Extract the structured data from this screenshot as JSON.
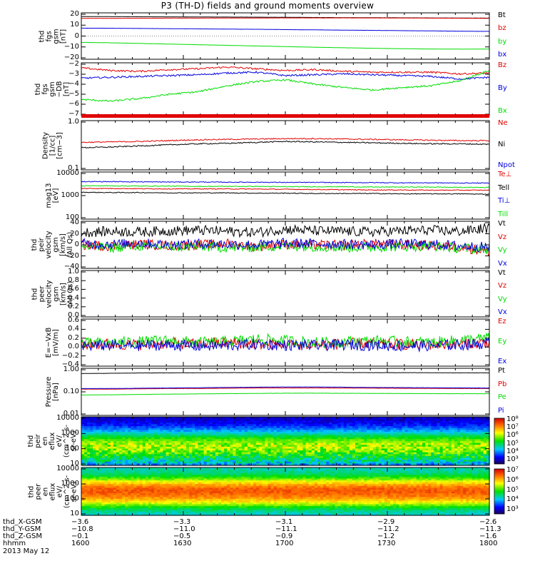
{
  "title": "P3 (TH-D) fields and ground moments overview",
  "date": "2013 May 12",
  "colors": {
    "black": "#000000",
    "red": "#e00000",
    "green": "#00dd00",
    "blue": "#0000dd"
  },
  "chart_data": [
    {
      "id": "fgs",
      "type": "line",
      "ylabel": [
        "thd",
        "fgs",
        "gsm",
        "[nT]"
      ],
      "yticks": [
        "20",
        "10",
        "0",
        "−10",
        "−20"
      ],
      "ylim": [
        -22,
        22
      ],
      "series": [
        {
          "name": "Bt",
          "color": "black",
          "values": [
            18.5,
            18.4,
            18.3,
            18.2,
            18.1,
            18.0,
            17.9,
            17.8,
            17.6,
            17.5,
            17.4,
            17.3,
            17.2,
            17.1,
            17.0
          ]
        },
        {
          "name": "bz",
          "color": "red",
          "values": [
            16.8,
            16.8,
            16.9,
            17.0,
            17.0,
            17.1,
            17.1,
            17.2,
            17.2,
            17.2,
            17.2,
            17.1,
            17.0,
            16.9,
            16.8
          ]
        },
        {
          "name": "by",
          "color": "green",
          "values": [
            -6.0,
            -6.4,
            -7.0,
            -7.6,
            -8.2,
            -8.8,
            -9.4,
            -10.0,
            -10.6,
            -11.1,
            -11.6,
            -12.0,
            -12.3,
            -12.4,
            -12.3
          ]
        },
        {
          "name": "bx",
          "color": "blue",
          "values": [
            7.5,
            7.4,
            7.2,
            7.0,
            6.8,
            6.6,
            6.4,
            6.1,
            5.9,
            5.6,
            5.4,
            5.1,
            4.9,
            4.6,
            4.4
          ]
        }
      ]
    },
    {
      "id": "gmom",
      "type": "line",
      "ylabel": [
        "thd",
        "fgs",
        "gsm",
        "−DB",
        "[nT]"
      ],
      "yticks": [
        "−2",
        "−3",
        "−4",
        "−5",
        "−6",
        "−7"
      ],
      "ylim": [
        -7.5,
        -1.3
      ],
      "series": [
        {
          "name": "Bz",
          "color": "red",
          "values": [
            -1.9,
            -2.2,
            -2.3,
            -2.1,
            -2.0,
            -1.8,
            -2.0,
            -2.2,
            -2.1,
            -2.3,
            -2.4,
            -2.4,
            -2.4,
            -2.6,
            -2.5
          ]
        },
        {
          "name": "By",
          "color": "blue",
          "values": [
            -3.1,
            -3.0,
            -2.9,
            -2.8,
            -2.7,
            -2.5,
            -2.4,
            -2.8,
            -2.7,
            -2.6,
            -2.7,
            -2.8,
            -2.9,
            -3.2,
            -3.0
          ]
        },
        {
          "name": "Bx",
          "color": "green",
          "values": [
            -5.6,
            -5.8,
            -5.5,
            -5.0,
            -4.7,
            -4.0,
            -3.5,
            -3.3,
            -3.8,
            -4.2,
            -4.5,
            -4.2,
            -4.0,
            -3.4,
            -2.2
          ]
        }
      ]
    },
    {
      "id": "density",
      "type": "line",
      "scale": "log",
      "ylabel": [
        "Density",
        "[1/cc]",
        "[cm−3]"
      ],
      "yticks": [
        "1.0",
        "0.1"
      ],
      "ylim": [
        0.09,
        1.3
      ],
      "series": [
        {
          "name": "Ne",
          "color": "red",
          "values": [
            0.4,
            0.41,
            0.42,
            0.44,
            0.46,
            0.47,
            0.48,
            0.49,
            0.49,
            0.48,
            0.47,
            0.46,
            0.45,
            0.44,
            0.44
          ]
        },
        {
          "name": "Ni",
          "color": "black",
          "values": [
            0.3,
            0.31,
            0.33,
            0.35,
            0.37,
            0.38,
            0.4,
            0.42,
            0.41,
            0.4,
            0.39,
            0.38,
            0.37,
            0.37,
            0.36
          ]
        },
        {
          "name": "Npot",
          "color": "blue",
          "values": []
        }
      ]
    },
    {
      "id": "temp",
      "type": "line",
      "scale": "log",
      "ylabel": [
        "mag13",
        "[eV]"
      ],
      "yticks": [
        "10000",
        "1000",
        "100"
      ],
      "ylim": [
        90,
        14000
      ],
      "series": [
        {
          "name": "Te⊥",
          "color": "red",
          "values": [
            2400,
            2400,
            2350,
            2300,
            2300,
            2300,
            2250,
            2200,
            2150,
            2100,
            2050,
            2050,
            2000,
            2000,
            2000
          ]
        },
        {
          "name": "Tell",
          "color": "black",
          "values": [
            1600,
            1550,
            1550,
            1500,
            1500,
            1500,
            1450,
            1450,
            1400,
            1400,
            1400,
            1350,
            1350,
            1350,
            1300
          ]
        },
        {
          "name": "Ti⊥",
          "color": "blue",
          "values": [
            5000,
            5000,
            4900,
            4800,
            4800,
            4700,
            4700,
            4600,
            4600,
            4500,
            4500,
            4400,
            4400,
            4300,
            4300
          ]
        },
        {
          "name": "Till",
          "color": "green",
          "values": [
            3200,
            3200,
            3100,
            3100,
            3000,
            3000,
            3000,
            2900,
            2900,
            2900,
            2800,
            2800,
            2800,
            2700,
            2700
          ]
        }
      ]
    },
    {
      "id": "vel_peir",
      "type": "line",
      "ylabel": [
        "thd",
        "peir",
        "velocity",
        "gsm",
        "[km/s]",
        "(All Qs)"
      ],
      "yticks": [
        "40",
        "20",
        "0",
        "−20",
        "−40"
      ],
      "ylim": [
        -42,
        42
      ],
      "series": [
        {
          "name": "Vt",
          "color": "black",
          "values": [
            22,
            24,
            23,
            25,
            26,
            24,
            22,
            28,
            25,
            24,
            23,
            25,
            26,
            24,
            30
          ]
        },
        {
          "name": "Vz",
          "color": "red",
          "values": [
            0,
            -2,
            1,
            -1,
            0,
            2,
            -3,
            1,
            0,
            -1,
            2,
            0,
            -1,
            -4,
            -12
          ]
        },
        {
          "name": "Vy",
          "color": "green",
          "values": [
            -3,
            -5,
            -2,
            -4,
            -3,
            -5,
            -4,
            -2,
            -3,
            -5,
            -4,
            -3,
            -2,
            -6,
            -8
          ]
        },
        {
          "name": "Vx",
          "color": "blue",
          "values": [
            2,
            1,
            3,
            0,
            2,
            1,
            0,
            3,
            2,
            1,
            0,
            2,
            1,
            -2,
            -4
          ]
        }
      ]
    },
    {
      "id": "vel_peer",
      "type": "line",
      "ylabel": [
        "thd",
        "peer",
        "velocity",
        "gsm",
        "[km/s]",
        "(All Qs)"
      ],
      "yticks": [
        "1.0",
        "0.8",
        "0.6",
        "0.4",
        "0.2",
        "0.0"
      ],
      "ylim": [
        0,
        1.0
      ],
      "series": [
        {
          "name": "Vt",
          "color": "black",
          "values": []
        },
        {
          "name": "Vz",
          "color": "red",
          "values": []
        },
        {
          "name": "Vy",
          "color": "green",
          "values": []
        },
        {
          "name": "Vx",
          "color": "blue",
          "values": []
        }
      ]
    },
    {
      "id": "efield",
      "type": "line",
      "ylabel": [
        "E=−VxB",
        "[mV/m]"
      ],
      "yticks": [
        "0.6",
        "0.4",
        "0.2",
        "0.0",
        "−0.2",
        "−0.4"
      ],
      "ylim": [
        -0.45,
        0.65
      ],
      "series": [
        {
          "name": "Ez",
          "color": "red",
          "values": [
            0.05,
            0.06,
            0.05,
            0.08,
            0.06,
            0.1,
            0.07,
            0.06,
            0.05,
            0.08,
            0.07,
            0.06,
            0.05,
            0.08,
            0.1
          ]
        },
        {
          "name": "Ey",
          "color": "green",
          "values": [
            0.08,
            0.1,
            0.12,
            0.15,
            0.1,
            0.12,
            0.18,
            0.15,
            0.1,
            0.12,
            0.14,
            0.12,
            0.1,
            0.16,
            0.2
          ]
        },
        {
          "name": "Ex",
          "color": "blue",
          "values": [
            0.02,
            0.04,
            0.03,
            0.05,
            0.02,
            0.03,
            0.06,
            0.04,
            0.03,
            0.05,
            0.04,
            0.02,
            0.03,
            0.05,
            0.08
          ]
        }
      ]
    },
    {
      "id": "pressure",
      "type": "line",
      "scale": "log",
      "ylabel": [
        "Pressure",
        "[nPa]"
      ],
      "yticks": [
        "1.00",
        "0.10",
        "0.01"
      ],
      "ylim": [
        0.009,
        1.4
      ],
      "series": [
        {
          "name": "Pt",
          "color": "black",
          "values": [
            0.8,
            0.82,
            0.85,
            0.86,
            0.87,
            0.88,
            0.89,
            0.9,
            0.9,
            0.89,
            0.88,
            0.88,
            0.87,
            0.86,
            0.86
          ]
        },
        {
          "name": "Pb",
          "color": "red",
          "values": [
            0.15,
            0.15,
            0.155,
            0.16,
            0.16,
            0.165,
            0.17,
            0.17,
            0.17,
            0.168,
            0.166,
            0.164,
            0.162,
            0.16,
            0.16
          ]
        },
        {
          "name": "Pe",
          "color": "green",
          "values": [
            0.08,
            0.082,
            0.085,
            0.088,
            0.09,
            0.093,
            0.095,
            0.097,
            0.097,
            0.096,
            0.095,
            0.094,
            0.093,
            0.092,
            0.092
          ]
        },
        {
          "name": "Pi",
          "color": "blue",
          "values": [
            0.16,
            0.16,
            0.165,
            0.17,
            0.175,
            0.18,
            0.185,
            0.19,
            0.19,
            0.185,
            0.18,
            0.178,
            0.175,
            0.172,
            0.17
          ]
        }
      ]
    },
    {
      "id": "spec_peir",
      "type": "heatmap",
      "scale": "log",
      "ylabel": [
        "thd",
        "peir",
        "en",
        "eflux",
        "eV/",
        "(cm^2-s-",
        "sr-eV)"
      ],
      "yticks": [
        "10000",
        "1000",
        "100",
        "10"
      ],
      "ylim": [
        8,
        20000
      ],
      "colorbar": {
        "labels": [
          "10⁸",
          "10⁷",
          "10⁶",
          "10⁵",
          "10⁴",
          "10³"
        ]
      },
      "profile": [
        0.1,
        0.12,
        0.16,
        0.22,
        0.3,
        0.4,
        0.5,
        0.58,
        0.62,
        0.62,
        0.58,
        0.52,
        0.45,
        0.38,
        0.3
      ]
    },
    {
      "id": "spec_peer",
      "type": "heatmap",
      "scale": "log",
      "ylabel": [
        "thd",
        "peer",
        "en",
        "eflux",
        "eV/",
        "(cm^2-s-",
        "sr-eV)"
      ],
      "yticks": [
        "10000",
        "1000",
        "100",
        "10"
      ],
      "ylim": [
        8,
        20000
      ],
      "colorbar": {
        "labels": [
          "10⁷",
          "10⁶",
          "10⁵",
          "10⁴",
          "10³"
        ]
      },
      "profile": [
        0.38,
        0.4,
        0.45,
        0.55,
        0.68,
        0.78,
        0.86,
        0.88,
        0.85,
        0.8,
        0.72,
        0.6,
        0.48,
        0.4,
        0.36
      ]
    }
  ],
  "ephemeris": {
    "labels": [
      "thd_X-GSM",
      "thd_Y-GSM",
      "thd_Z-GSM",
      "hhmm"
    ],
    "rows": [
      [
        "−3.6",
        "−3.3",
        "−3.1",
        "−2.9",
        "−2.6"
      ],
      [
        "−10.8",
        "−11.0",
        "−11.1",
        "−11.2",
        "−11.3"
      ],
      [
        "−0.1",
        "−0.5",
        "−0.9",
        "−1.2",
        "−1.6"
      ],
      [
        "1600",
        "1630",
        "1700",
        "1730",
        "1800"
      ]
    ]
  }
}
